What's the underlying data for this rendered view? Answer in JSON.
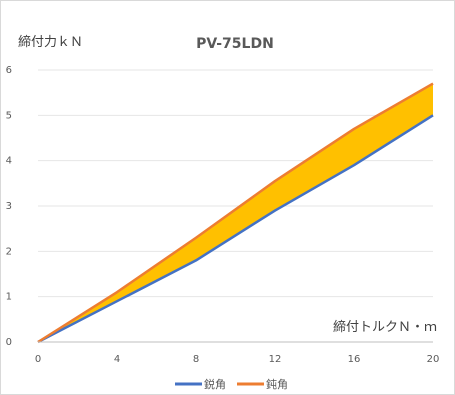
{
  "chart_data": {
    "type": "line",
    "title": "PV-75LDN",
    "ylabel": "締付力ｋＮ",
    "xlabel": "締付トルクＮ・ｍ",
    "x": [
      0,
      4,
      8,
      12,
      16,
      20
    ],
    "xticks": [
      "0",
      "4",
      "8",
      "12",
      "16",
      "20"
    ],
    "yticks": [
      "0",
      "1",
      "2",
      "3",
      "4",
      "5",
      "6"
    ],
    "xlim": [
      0,
      20
    ],
    "ylim": [
      0,
      6
    ],
    "grid": true,
    "legend_position": "bottom",
    "fill_between": {
      "color": "#FFC000",
      "series": [
        "鋭角",
        "鈍角"
      ]
    },
    "series": [
      {
        "name": "鋭角",
        "color": "#4472C4",
        "values": [
          0,
          0.9,
          1.8,
          2.9,
          3.9,
          5.0
        ]
      },
      {
        "name": "鈍角",
        "color": "#ED7D31",
        "values": [
          0,
          1.1,
          2.3,
          3.55,
          4.7,
          5.7
        ]
      }
    ]
  }
}
